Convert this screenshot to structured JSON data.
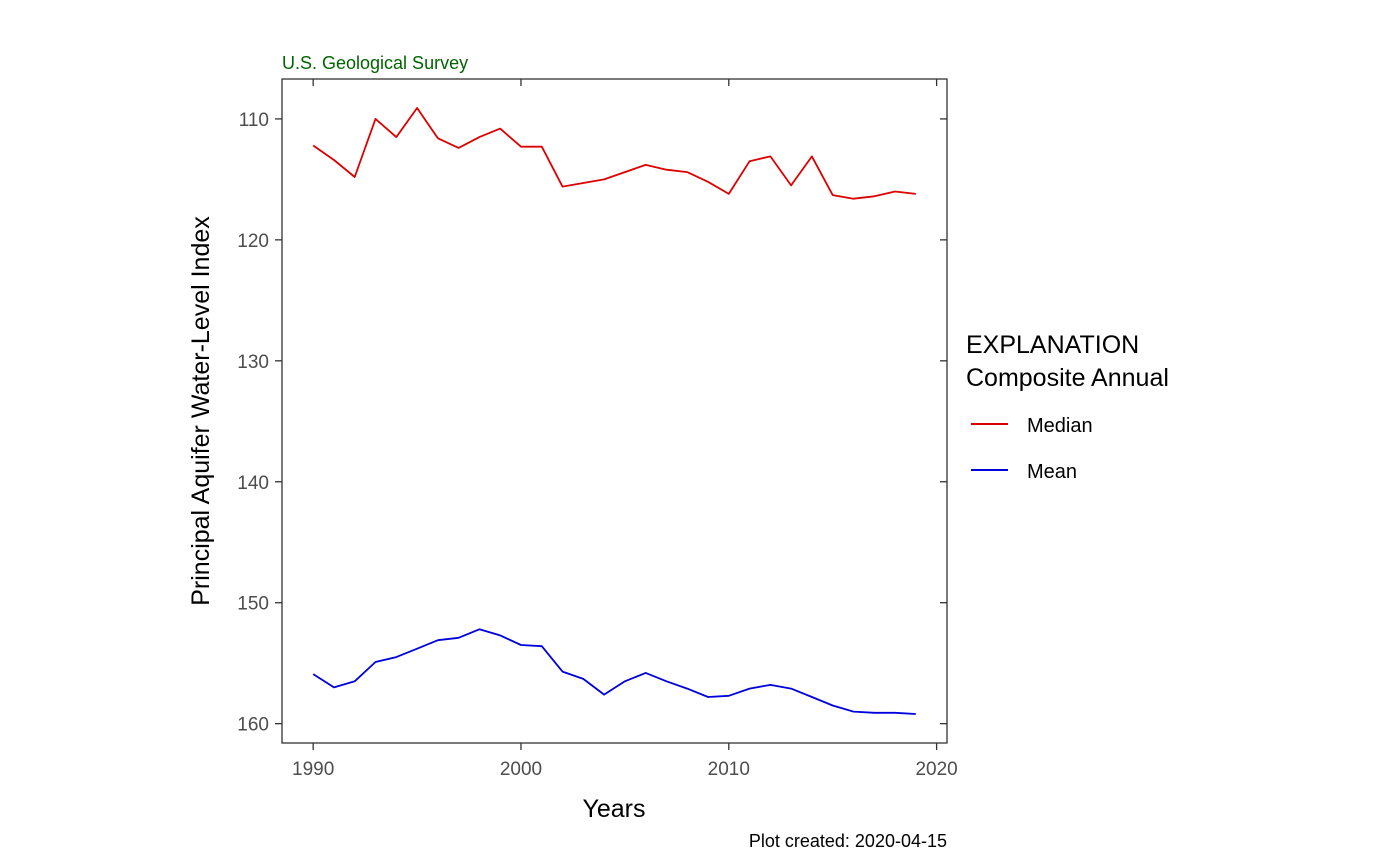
{
  "source_label": "U.S. Geological Survey",
  "caption": "Plot created: 2020-04-15",
  "chart_data": {
    "type": "line",
    "title": "",
    "xlabel": "Years",
    "ylabel": "Principal Aquifer Water-Level Index",
    "xlim": [
      1988.5,
      2020.5
    ],
    "ylim": [
      161.6,
      106.7
    ],
    "y_reversed": true,
    "x_ticks": [
      1990,
      2000,
      2010,
      2020
    ],
    "y_ticks": [
      110,
      120,
      130,
      140,
      150,
      160
    ],
    "grid": false,
    "legend": {
      "placement": "right",
      "title_line1": "EXPLANATION",
      "title_line2": "Composite Annual",
      "entries": [
        "Median",
        "Mean"
      ]
    },
    "x": [
      1990,
      1991,
      1992,
      1993,
      1994,
      1995,
      1996,
      1997,
      1998,
      1999,
      2000,
      2001,
      2002,
      2003,
      2004,
      2005,
      2006,
      2007,
      2008,
      2009,
      2010,
      2011,
      2012,
      2013,
      2014,
      2015,
      2016,
      2017,
      2018,
      2019
    ],
    "series": [
      {
        "name": "Median",
        "color": "#dd0000",
        "values": [
          112.2,
          113.4,
          114.8,
          110.0,
          111.5,
          109.1,
          111.6,
          112.4,
          111.5,
          110.8,
          112.3,
          112.3,
          115.6,
          115.3,
          115.0,
          114.4,
          113.8,
          114.2,
          114.4,
          115.2,
          116.2,
          113.5,
          113.1,
          115.5,
          113.1,
          116.3,
          116.6,
          116.4,
          116.0,
          116.2
        ]
      },
      {
        "name": "Mean",
        "color": "#0000dd",
        "values": [
          155.9,
          157.0,
          156.5,
          154.9,
          154.5,
          153.8,
          153.1,
          152.9,
          152.2,
          152.7,
          153.5,
          153.6,
          155.7,
          156.3,
          157.6,
          156.5,
          155.8,
          156.5,
          157.1,
          157.8,
          157.7,
          157.1,
          156.8,
          157.1,
          157.8,
          158.5,
          159.0,
          159.1,
          159.1,
          159.2
        ]
      }
    ]
  }
}
